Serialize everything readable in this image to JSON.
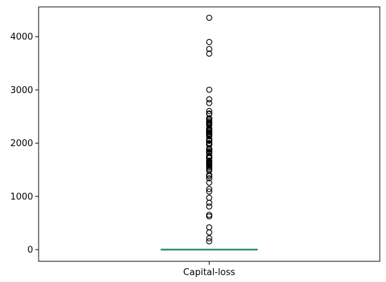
{
  "chart_data": {
    "type": "box",
    "title": "",
    "xlabel": "",
    "ylabel": "",
    "categories": [
      "Capital-loss"
    ],
    "ylim": [
      -220,
      4560
    ],
    "yticks": [
      0,
      1000,
      2000,
      3000,
      4000
    ],
    "ytick_labels": [
      "0",
      "1000",
      "2000",
      "3000",
      "4000"
    ],
    "grid": false,
    "legend": "none",
    "series": [
      {
        "category": "Capital-loss",
        "box": {
          "q1": 0,
          "median": 0,
          "q3": 0,
          "whisker_low": 0,
          "whisker_high": 0
        },
        "outliers": [
          155,
          213,
          323,
          419,
          625,
          653,
          810,
          880,
          974,
          1092,
          1138,
          1258,
          1340,
          1380,
          1408,
          1485,
          1510,
          1540,
          1564,
          1590,
          1602,
          1617,
          1628,
          1648,
          1668,
          1672,
          1719,
          1721,
          1735,
          1740,
          1755,
          1762,
          1816,
          1825,
          1844,
          1848,
          1876,
          1887,
          1902,
          1974,
          1977,
          1980,
          2001,
          2002,
          2042,
          2051,
          2057,
          2080,
          2129,
          2149,
          2163,
          2174,
          2179,
          2201,
          2205,
          2206,
          2231,
          2238,
          2246,
          2258,
          2267,
          2282,
          2339,
          2352,
          2377,
          2392,
          2415,
          2444,
          2457,
          2467,
          2547,
          2559,
          2603,
          2754,
          2824,
          3004,
          3683,
          3770,
          3900,
          4356
        ]
      }
    ],
    "colors": {
      "box": "#1f77b4",
      "median": "#2ca02c",
      "outlier_edge": "#000000",
      "axes": "#000000"
    }
  }
}
